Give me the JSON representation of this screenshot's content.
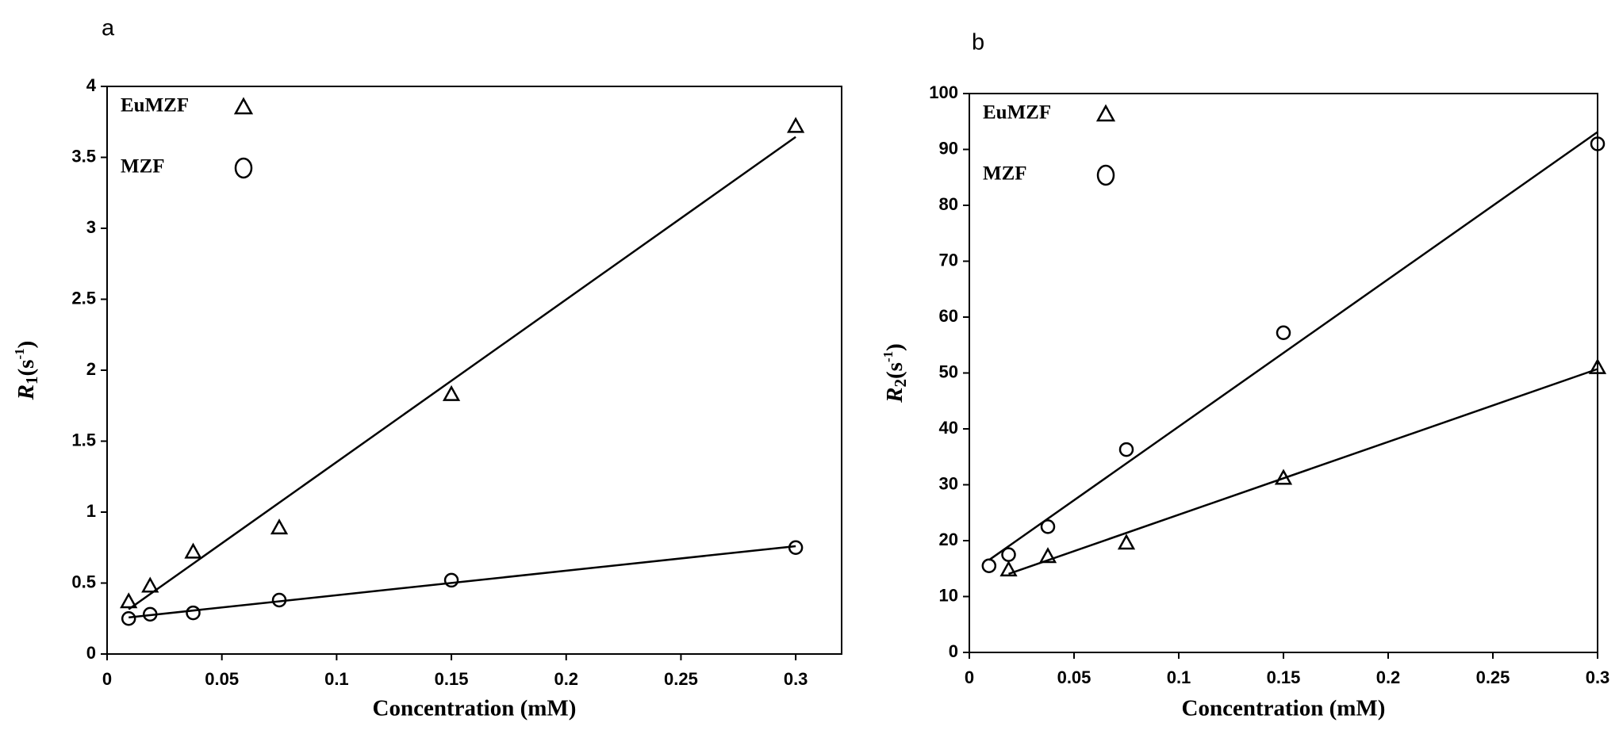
{
  "chart_data": [
    {
      "type": "scatter",
      "label": "a",
      "x_label": "Concentration (mM)",
      "y_label_parts": [
        "R",
        "1",
        "(s",
        "-1",
        ")"
      ],
      "x": [
        0.0094,
        0.01875,
        0.0375,
        0.075,
        0.15,
        0.3
      ],
      "series": [
        {
          "name": "EuMZF",
          "marker": "triangle",
          "color": "#000000",
          "values": [
            0.37,
            0.48,
            0.72,
            0.89,
            1.83,
            3.72
          ]
        },
        {
          "name": "MZF",
          "marker": "circle",
          "color": "#000000",
          "values": [
            0.25,
            0.28,
            0.29,
            0.38,
            0.52,
            0.75
          ]
        }
      ],
      "xlim": [
        0,
        0.32
      ],
      "xticks": [
        0,
        0.05,
        0.1,
        0.15,
        0.2,
        0.25,
        0.3
      ],
      "ylim": [
        0,
        4
      ],
      "yticks": [
        0,
        0.5,
        1,
        1.5,
        2,
        2.5,
        3,
        3.5,
        4
      ],
      "trendline": true,
      "legend": "upper left"
    },
    {
      "type": "scatter",
      "label": "b",
      "x_label": "Concentration (mM)",
      "y_label_parts": [
        "R",
        "2",
        "(s",
        "-1",
        ")"
      ],
      "x": [
        0.0094,
        0.01875,
        0.0375,
        0.075,
        0.15,
        0.3
      ],
      "series": [
        {
          "name": "EuMZF",
          "marker": "triangle",
          "color": "#000000",
          "values": [
            null,
            14.8,
            17.2,
            19.6,
            31.2,
            51
          ]
        },
        {
          "name": "MZF",
          "marker": "circle",
          "color": "#000000",
          "values": [
            15.5,
            17.5,
            22.5,
            36.3,
            57.2,
            91
          ]
        }
      ],
      "xlim": [
        0,
        0.3
      ],
      "xticks": [
        0,
        0.05,
        0.1,
        0.15,
        0.2,
        0.25,
        0.3
      ],
      "ylim": [
        0,
        100
      ],
      "yticks": [
        0,
        10,
        20,
        30,
        40,
        50,
        60,
        70,
        80,
        90,
        100
      ],
      "trendline": true,
      "legend": "upper left"
    }
  ]
}
